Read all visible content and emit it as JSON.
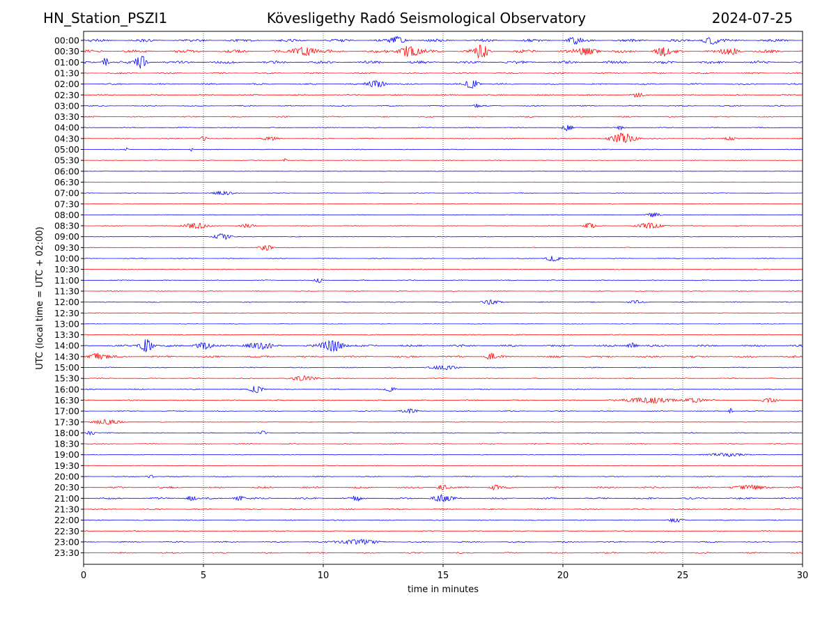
{
  "header": {
    "station": "HN_Station_PSZI1",
    "title": "Kövesligethy Radó Seismological Observatory",
    "date": "2024-07-25"
  },
  "chart_data": {
    "type": "line",
    "title": "Kövesligethy Radó Seismological Observatory",
    "xlabel": "time in minutes",
    "ylabel": "UTC (local time = UTC + 02:00)",
    "xlim": [
      0,
      30
    ],
    "xticks": [
      0,
      5,
      10,
      15,
      20,
      25,
      30
    ],
    "vertical_gridlines": [
      5,
      10,
      15,
      20,
      25
    ],
    "grid": "dotted vertical lines at 5-minute intervals",
    "trace_colors": [
      "#0000ff",
      "#ff0000"
    ],
    "row_labels": [
      "00:00",
      "00:30",
      "01:00",
      "01:30",
      "02:00",
      "02:30",
      "03:00",
      "03:30",
      "04:00",
      "04:30",
      "05:00",
      "05:30",
      "06:00",
      "06:30",
      "07:00",
      "07:30",
      "08:00",
      "08:30",
      "09:00",
      "09:30",
      "10:00",
      "10:30",
      "11:00",
      "11:30",
      "12:00",
      "12:30",
      "13:00",
      "13:30",
      "14:00",
      "14:30",
      "15:00",
      "15:30",
      "16:00",
      "16:30",
      "17:00",
      "17:30",
      "18:00",
      "18:30",
      "19:00",
      "19:30",
      "20:00",
      "20:30",
      "21:00",
      "21:30",
      "22:00",
      "22:30",
      "23:00",
      "23:30"
    ],
    "noise_level": [
      0.9,
      1.0,
      0.9,
      0.45,
      0.45,
      0.4,
      0.35,
      0.4,
      0.3,
      0.3,
      0.25,
      0.2,
      0.15,
      0.15,
      0.2,
      0.15,
      0.2,
      0.2,
      0.2,
      0.2,
      0.25,
      0.25,
      0.3,
      0.25,
      0.3,
      0.2,
      0.15,
      0.3,
      0.65,
      0.6,
      0.3,
      0.3,
      0.3,
      0.35,
      0.3,
      0.2,
      0.3,
      0.3,
      0.2,
      0.2,
      0.3,
      0.55,
      0.55,
      0.4,
      0.3,
      0.3,
      0.4,
      0.45
    ],
    "events": [
      {
        "row": 0,
        "minute": 13.1,
        "amp": 1.2,
        "dur": 0.5
      },
      {
        "row": 0,
        "minute": 20.5,
        "amp": 1.3,
        "dur": 0.4
      },
      {
        "row": 0,
        "minute": 26.2,
        "amp": 1.5,
        "dur": 0.5
      },
      {
        "row": 1,
        "minute": 9.2,
        "amp": 1.5,
        "dur": 0.8
      },
      {
        "row": 1,
        "minute": 13.6,
        "amp": 2.2,
        "dur": 0.6
      },
      {
        "row": 1,
        "minute": 16.6,
        "amp": 2.4,
        "dur": 0.4
      },
      {
        "row": 1,
        "minute": 21.0,
        "amp": 1.6,
        "dur": 0.6
      },
      {
        "row": 1,
        "minute": 24.2,
        "amp": 1.5,
        "dur": 0.5
      },
      {
        "row": 1,
        "minute": 27.0,
        "amp": 1.2,
        "dur": 0.5
      },
      {
        "row": 2,
        "minute": 0.9,
        "amp": 1.5,
        "dur": 0.2
      },
      {
        "row": 2,
        "minute": 2.4,
        "amp": 2.6,
        "dur": 0.3
      },
      {
        "row": 4,
        "minute": 12.2,
        "amp": 1.2,
        "dur": 0.6
      },
      {
        "row": 4,
        "minute": 16.2,
        "amp": 1.8,
        "dur": 0.4
      },
      {
        "row": 5,
        "minute": 23.1,
        "amp": 0.9,
        "dur": 0.3
      },
      {
        "row": 6,
        "minute": 16.4,
        "amp": 0.8,
        "dur": 0.2
      },
      {
        "row": 8,
        "minute": 20.2,
        "amp": 1.2,
        "dur": 0.3
      },
      {
        "row": 8,
        "minute": 22.4,
        "amp": 0.8,
        "dur": 0.2
      },
      {
        "row": 9,
        "minute": 5.0,
        "amp": 0.8,
        "dur": 0.2
      },
      {
        "row": 9,
        "minute": 7.8,
        "amp": 0.6,
        "dur": 0.5
      },
      {
        "row": 9,
        "minute": 22.5,
        "amp": 2.2,
        "dur": 0.7
      },
      {
        "row": 9,
        "minute": 27.0,
        "amp": 0.6,
        "dur": 0.4
      },
      {
        "row": 10,
        "minute": 1.8,
        "amp": 0.6,
        "dur": 0.1
      },
      {
        "row": 10,
        "minute": 4.5,
        "amp": 0.6,
        "dur": 0.1
      },
      {
        "row": 11,
        "minute": 8.4,
        "amp": 0.6,
        "dur": 0.1
      },
      {
        "row": 14,
        "minute": 5.8,
        "amp": 0.7,
        "dur": 0.6
      },
      {
        "row": 16,
        "minute": 23.8,
        "amp": 0.8,
        "dur": 0.4
      },
      {
        "row": 17,
        "minute": 4.7,
        "amp": 1.1,
        "dur": 0.7
      },
      {
        "row": 17,
        "minute": 6.8,
        "amp": 0.7,
        "dur": 0.4
      },
      {
        "row": 17,
        "minute": 21.1,
        "amp": 1.2,
        "dur": 0.3
      },
      {
        "row": 17,
        "minute": 23.6,
        "amp": 1.0,
        "dur": 0.8
      },
      {
        "row": 18,
        "minute": 5.8,
        "amp": 1.1,
        "dur": 0.5
      },
      {
        "row": 19,
        "minute": 7.6,
        "amp": 1.0,
        "dur": 0.4
      },
      {
        "row": 20,
        "minute": 19.6,
        "amp": 1.1,
        "dur": 0.4
      },
      {
        "row": 22,
        "minute": 9.8,
        "amp": 1.1,
        "dur": 0.2
      },
      {
        "row": 24,
        "minute": 17.0,
        "amp": 0.8,
        "dur": 0.5
      },
      {
        "row": 24,
        "minute": 23.0,
        "amp": 0.7,
        "dur": 0.4
      },
      {
        "row": 28,
        "minute": 2.6,
        "amp": 2.5,
        "dur": 0.4
      },
      {
        "row": 28,
        "minute": 5.0,
        "amp": 1.2,
        "dur": 0.5
      },
      {
        "row": 28,
        "minute": 7.3,
        "amp": 1.2,
        "dur": 0.8
      },
      {
        "row": 28,
        "minute": 10.4,
        "amp": 2.0,
        "dur": 0.7
      },
      {
        "row": 28,
        "minute": 22.9,
        "amp": 1.0,
        "dur": 0.3
      },
      {
        "row": 29,
        "minute": 0.6,
        "amp": 1.2,
        "dur": 0.6
      },
      {
        "row": 29,
        "minute": 17.0,
        "amp": 1.2,
        "dur": 0.3
      },
      {
        "row": 30,
        "minute": 15.0,
        "amp": 0.8,
        "dur": 0.8
      },
      {
        "row": 31,
        "minute": 9.2,
        "amp": 0.8,
        "dur": 0.8
      },
      {
        "row": 32,
        "minute": 7.2,
        "amp": 1.2,
        "dur": 0.4
      },
      {
        "row": 32,
        "minute": 12.8,
        "amp": 0.9,
        "dur": 0.3
      },
      {
        "row": 33,
        "minute": 23.6,
        "amp": 1.0,
        "dur": 1.5
      },
      {
        "row": 33,
        "minute": 25.5,
        "amp": 0.8,
        "dur": 0.6
      },
      {
        "row": 33,
        "minute": 28.6,
        "amp": 1.0,
        "dur": 0.5
      },
      {
        "row": 34,
        "minute": 13.6,
        "amp": 0.7,
        "dur": 0.5
      },
      {
        "row": 34,
        "minute": 27.0,
        "amp": 1.0,
        "dur": 0.1
      },
      {
        "row": 35,
        "minute": 1.0,
        "amp": 0.9,
        "dur": 0.8
      },
      {
        "row": 36,
        "minute": 0.3,
        "amp": 0.7,
        "dur": 0.3
      },
      {
        "row": 36,
        "minute": 7.5,
        "amp": 0.6,
        "dur": 0.2
      },
      {
        "row": 38,
        "minute": 26.8,
        "amp": 0.6,
        "dur": 1.2
      },
      {
        "row": 40,
        "minute": 2.8,
        "amp": 0.6,
        "dur": 0.2
      },
      {
        "row": 41,
        "minute": 15.0,
        "amp": 1.0,
        "dur": 0.3
      },
      {
        "row": 41,
        "minute": 17.2,
        "amp": 1.0,
        "dur": 0.3
      },
      {
        "row": 41,
        "minute": 27.8,
        "amp": 0.9,
        "dur": 1.0
      },
      {
        "row": 42,
        "minute": 4.5,
        "amp": 1.0,
        "dur": 0.3
      },
      {
        "row": 42,
        "minute": 6.5,
        "amp": 0.9,
        "dur": 0.3
      },
      {
        "row": 42,
        "minute": 11.4,
        "amp": 1.0,
        "dur": 0.3
      },
      {
        "row": 42,
        "minute": 15.0,
        "amp": 1.3,
        "dur": 0.6
      },
      {
        "row": 44,
        "minute": 24.7,
        "amp": 0.8,
        "dur": 0.4
      },
      {
        "row": 46,
        "minute": 11.5,
        "amp": 0.9,
        "dur": 1.2
      }
    ]
  }
}
